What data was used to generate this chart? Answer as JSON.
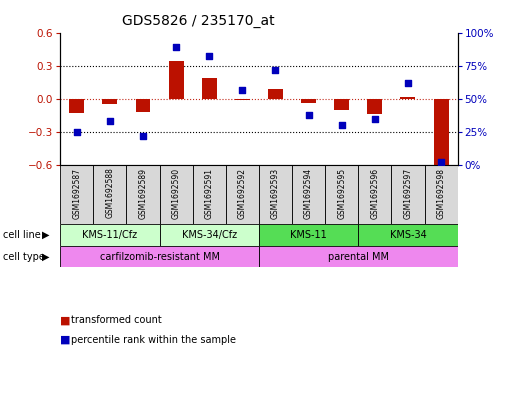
{
  "title": "GDS5826 / 235170_at",
  "samples": [
    "GSM1692587",
    "GSM1692588",
    "GSM1692589",
    "GSM1692590",
    "GSM1692591",
    "GSM1692592",
    "GSM1692593",
    "GSM1692594",
    "GSM1692595",
    "GSM1692596",
    "GSM1692597",
    "GSM1692598"
  ],
  "red_values": [
    -0.13,
    -0.05,
    -0.12,
    0.35,
    0.19,
    -0.01,
    0.09,
    -0.04,
    -0.1,
    -0.14,
    0.02,
    -0.62
  ],
  "blue_values": [
    25,
    33,
    22,
    90,
    83,
    57,
    72,
    38,
    30,
    35,
    62,
    2
  ],
  "cell_lines": [
    {
      "label": "KMS-11/Cfz",
      "start": 0,
      "end": 3,
      "color": "#ccffcc"
    },
    {
      "label": "KMS-34/Cfz",
      "start": 3,
      "end": 6,
      "color": "#ccffcc"
    },
    {
      "label": "KMS-11",
      "start": 6,
      "end": 9,
      "color": "#55dd55"
    },
    {
      "label": "KMS-34",
      "start": 9,
      "end": 12,
      "color": "#55dd55"
    }
  ],
  "cell_types": [
    {
      "label": "carfilzomib-resistant MM",
      "start": 0,
      "end": 6,
      "color": "#ee88ee"
    },
    {
      "label": "parental MM",
      "start": 6,
      "end": 12,
      "color": "#ee88ee"
    }
  ],
  "red_color": "#bb1100",
  "blue_color": "#0000bb",
  "ylim_left": [
    -0.6,
    0.6
  ],
  "ylim_right": [
    0,
    100
  ],
  "yticks_left": [
    -0.6,
    -0.3,
    0.0,
    0.3,
    0.6
  ],
  "yticks_right": [
    0,
    25,
    50,
    75,
    100
  ],
  "bg_color": "white",
  "sample_box_color": "#d8d8d8"
}
